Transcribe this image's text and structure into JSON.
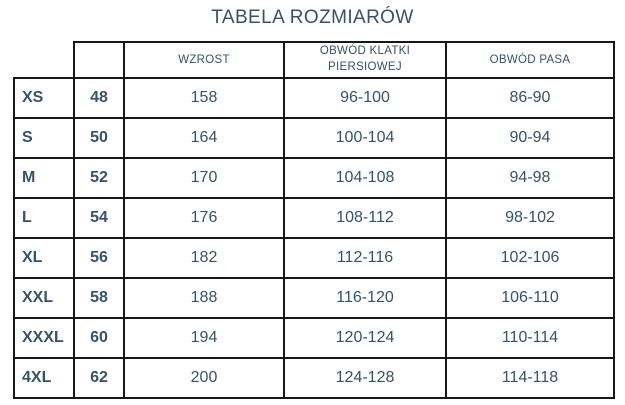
{
  "page": {
    "title": "TABELA ROZMIARÓW"
  },
  "colors": {
    "text_navy": "#35526F",
    "border": "#161616",
    "background": "#FFFFFF"
  },
  "chart_data": {
    "type": "table",
    "title": "TABELA ROZMIARÓW",
    "columns": {
      "size_label": "",
      "size_number": "",
      "height": "WZROST",
      "chest": "OBWÓD KLATKI PIERSIOWEJ",
      "waist": "OBWÓD PASA"
    },
    "rows": [
      {
        "size": "XS",
        "number": "48",
        "height": "158",
        "chest": "96-100",
        "waist": "86-90"
      },
      {
        "size": "S",
        "number": "50",
        "height": "164",
        "chest": "100-104",
        "waist": "90-94"
      },
      {
        "size": "M",
        "number": "52",
        "height": "170",
        "chest": "104-108",
        "waist": "94-98"
      },
      {
        "size": "L",
        "number": "54",
        "height": "176",
        "chest": "108-112",
        "waist": "98-102"
      },
      {
        "size": "XL",
        "number": "56",
        "height": "182",
        "chest": "112-116",
        "waist": "102-106"
      },
      {
        "size": "XXL",
        "number": "58",
        "height": "188",
        "chest": "116-120",
        "waist": "106-110"
      },
      {
        "size": "XXXL",
        "number": "60",
        "height": "194",
        "chest": "120-124",
        "waist": "110-114"
      },
      {
        "size": "4XL",
        "number": "62",
        "height": "200",
        "chest": "124-128",
        "waist": "114-118"
      }
    ]
  }
}
